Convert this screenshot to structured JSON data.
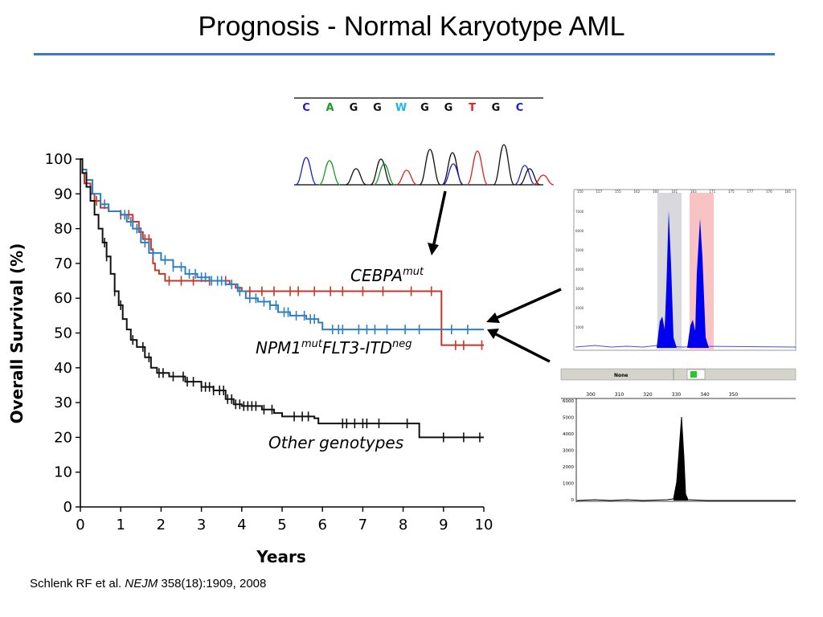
{
  "slide": {
    "title": "Prognosis - Normal Karyotype AML",
    "citation_authors": "Schlenk RF et al. ",
    "citation_journal": "NEJM",
    "citation_ref": " 358(18):1909, 2008"
  },
  "colors": {
    "title_rule": "#3b73e0",
    "cebpa": "#c0392b",
    "npm1": "#2e7fc1",
    "other": "#111111",
    "electro_peak": "#0000ee",
    "electro_grey_band": "#d9d9dd",
    "electro_pink_band": "#f7c3c3",
    "status_green": "#22cc22"
  },
  "chart_data": {
    "type": "line",
    "title": "",
    "xlabel": "Years",
    "ylabel": "Overall Survival (%)",
    "xlim": [
      0,
      10
    ],
    "ylim": [
      0,
      100
    ],
    "x_ticks": [
      "0",
      "1",
      "2",
      "3",
      "4",
      "5",
      "6",
      "7",
      "8",
      "9",
      "10"
    ],
    "y_ticks": [
      "0",
      "10",
      "20",
      "30",
      "40",
      "50",
      "60",
      "70",
      "80",
      "90",
      "100"
    ],
    "series": [
      {
        "key": "cebpa",
        "name": "CEBPA",
        "name_sup": "mut",
        "points": [
          [
            0,
            100
          ],
          [
            0.05,
            96
          ],
          [
            0.1,
            93
          ],
          [
            0.25,
            90
          ],
          [
            0.35,
            88
          ],
          [
            0.5,
            86
          ],
          [
            0.7,
            85
          ],
          [
            1.0,
            84
          ],
          [
            1.3,
            82
          ],
          [
            1.45,
            79
          ],
          [
            1.55,
            77
          ],
          [
            1.75,
            74
          ],
          [
            1.8,
            70
          ],
          [
            1.85,
            68
          ],
          [
            1.95,
            67
          ],
          [
            2.1,
            65
          ],
          [
            3.3,
            65
          ],
          [
            3.7,
            64
          ],
          [
            3.85,
            63
          ],
          [
            4.0,
            62
          ],
          [
            8.95,
            62
          ],
          [
            8.95,
            46.5
          ],
          [
            10,
            46.5
          ]
        ],
        "censor_x": [
          0.4,
          1.0,
          1.2,
          1.5,
          1.6,
          1.7,
          2.2,
          2.5,
          2.8,
          3.2,
          3.6,
          4.2,
          4.5,
          4.8,
          5.2,
          5.4,
          5.8,
          6.2,
          6.5,
          7.0,
          7.5,
          8.2,
          8.7,
          9.3,
          9.5,
          9.95
        ]
      },
      {
        "key": "npm1",
        "name": "NPM1",
        "name_sup": "mut",
        "name_mid": "FLT3-ITD",
        "name_sup2": "neg",
        "points": [
          [
            0,
            100
          ],
          [
            0.05,
            97
          ],
          [
            0.15,
            94
          ],
          [
            0.3,
            90
          ],
          [
            0.5,
            87
          ],
          [
            0.7,
            85
          ],
          [
            1.0,
            84
          ],
          [
            1.15,
            82
          ],
          [
            1.3,
            80
          ],
          [
            1.5,
            76
          ],
          [
            1.7,
            73
          ],
          [
            2.0,
            71
          ],
          [
            2.3,
            69
          ],
          [
            2.6,
            67
          ],
          [
            2.9,
            66
          ],
          [
            3.2,
            65
          ],
          [
            3.6,
            64
          ],
          [
            3.9,
            62
          ],
          [
            4.1,
            60
          ],
          [
            4.4,
            59
          ],
          [
            4.7,
            58
          ],
          [
            4.9,
            56
          ],
          [
            5.2,
            55
          ],
          [
            5.6,
            54
          ],
          [
            5.9,
            53
          ],
          [
            6.0,
            51
          ],
          [
            10,
            51
          ]
        ],
        "censor_x": [
          0.6,
          1.1,
          1.25,
          1.4,
          1.6,
          1.8,
          2.1,
          2.3,
          2.5,
          2.7,
          2.85,
          3.0,
          3.1,
          3.25,
          3.4,
          3.5,
          3.75,
          3.95,
          4.2,
          4.35,
          4.55,
          4.7,
          4.85,
          5.05,
          5.15,
          5.35,
          5.55,
          5.7,
          5.8,
          6.25,
          6.4,
          6.5,
          6.9,
          7.1,
          7.3,
          7.6,
          8.05,
          8.4,
          9.2,
          9.6
        ]
      },
      {
        "key": "other",
        "name": "Other genotypes",
        "points": [
          [
            0,
            100
          ],
          [
            0.05,
            96
          ],
          [
            0.15,
            92
          ],
          [
            0.25,
            88
          ],
          [
            0.35,
            84
          ],
          [
            0.45,
            80
          ],
          [
            0.55,
            76
          ],
          [
            0.65,
            72
          ],
          [
            0.75,
            67
          ],
          [
            0.85,
            62
          ],
          [
            0.95,
            58
          ],
          [
            1.05,
            54
          ],
          [
            1.15,
            51
          ],
          [
            1.25,
            48
          ],
          [
            1.4,
            46
          ],
          [
            1.6,
            43
          ],
          [
            1.75,
            40
          ],
          [
            1.9,
            38.5
          ],
          [
            2.2,
            37.5
          ],
          [
            2.6,
            36
          ],
          [
            3.0,
            34.5
          ],
          [
            3.3,
            33.5
          ],
          [
            3.6,
            31
          ],
          [
            3.8,
            29.5
          ],
          [
            4.0,
            29
          ],
          [
            4.5,
            28
          ],
          [
            4.8,
            27
          ],
          [
            5.0,
            26
          ],
          [
            5.8,
            25.5
          ],
          [
            5.9,
            24
          ],
          [
            8.4,
            24
          ],
          [
            8.4,
            20
          ],
          [
            10,
            20
          ]
        ],
        "censor_x": [
          0.6,
          0.65,
          0.85,
          1.0,
          1.3,
          1.55,
          1.7,
          1.95,
          2.05,
          2.3,
          2.55,
          2.65,
          2.8,
          3.0,
          3.1,
          3.2,
          3.3,
          3.45,
          3.55,
          3.65,
          3.75,
          3.85,
          3.95,
          4.05,
          4.15,
          4.25,
          4.35,
          4.55,
          4.75,
          5.3,
          5.5,
          5.65,
          6.5,
          6.6,
          6.8,
          7.0,
          7.1,
          7.4,
          8.1,
          9.0,
          9.5,
          9.9
        ]
      }
    ]
  },
  "sequence": {
    "bases": [
      "C",
      "A",
      "G",
      "G",
      "W",
      "G",
      "G",
      "T",
      "G",
      "C"
    ],
    "base_colors": [
      "#1e1ec8",
      "#1a9a2a",
      "#111111",
      "#111111",
      "#22b5e8",
      "#111111",
      "#111111",
      "#e02020",
      "#111111",
      "#1e1ec8"
    ]
  },
  "electropherogram_top": {
    "x_ticks": [
      "150",
      "157",
      "155",
      "162",
      "160",
      "161",
      "163",
      "171",
      "175",
      "177",
      "176",
      "181"
    ],
    "y_ticks": [
      "7000",
      "6000",
      "5000",
      "4000",
      "3000",
      "2000",
      "1000"
    ]
  },
  "electropherogram_bottom": {
    "header_label": "None",
    "x_ticks": [
      "300",
      "310",
      "320",
      "330",
      "340",
      "350"
    ],
    "y_ticks": [
      "6000",
      "5000",
      "4000",
      "3000",
      "2000",
      "1000",
      "0"
    ]
  }
}
